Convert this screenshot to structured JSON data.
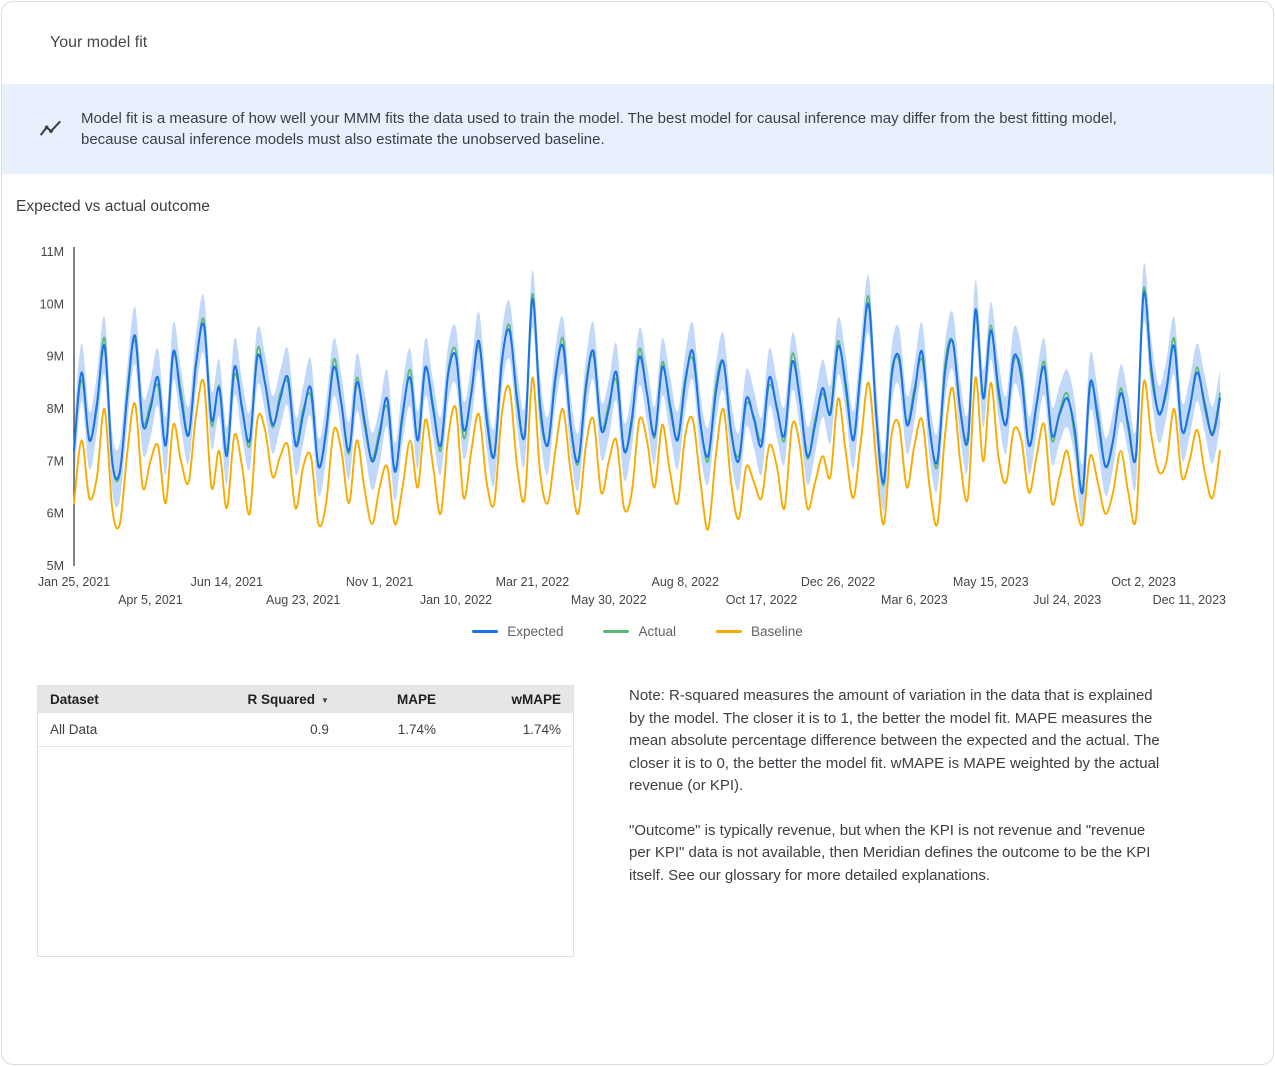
{
  "page": {
    "title": "Your model fit"
  },
  "banner": {
    "icon": "trend-line-icon",
    "text": "Model fit is a measure of how well your MMM fits the data used to train the model. The best model for causal inference may differ from the best fitting model, because causal inference models must also estimate the unobserved baseline."
  },
  "chart_section": {
    "title": "Expected vs actual outcome"
  },
  "chart_data": {
    "type": "line",
    "title": "Expected vs actual outcome",
    "x_unit": "week",
    "x_tick_positions": [
      0,
      10,
      20,
      30,
      40,
      50,
      60,
      70,
      80,
      90,
      100,
      110,
      120,
      130,
      140,
      150
    ],
    "x_tick_labels": [
      "Jan 25, 2021",
      "Apr 5, 2021",
      "Jun 14, 2021",
      "Aug 23, 2021",
      "Nov 1, 2021",
      "Jan 10, 2022",
      "Mar 21, 2022",
      "May 30, 2022",
      "Aug 8, 2022",
      "Oct 17, 2022",
      "Dec 26, 2022",
      "Mar 6, 2023",
      "May 15, 2023",
      "Jul 24, 2023",
      "Oct 2, 2023",
      "Dec 11, 2023"
    ],
    "y_tick_labels": [
      "5M",
      "6M",
      "7M",
      "8M",
      "9M",
      "10M",
      "11M"
    ],
    "ylim_millions": [
      5,
      11
    ],
    "values_unit": "millions",
    "grid": false,
    "legend_position": "bottom",
    "band": {
      "series": "Expected",
      "halfwidth_millions": 0.55,
      "color": "#aecbfa",
      "opacity": 0.75
    },
    "series": [
      {
        "name": "Expected",
        "color": "#1a73e8",
        "values": [
          7.2,
          8.7,
          7.4,
          8.1,
          9.2,
          7.0,
          6.8,
          8.3,
          9.4,
          7.7,
          8.0,
          8.6,
          7.3,
          9.1,
          8.2,
          7.5,
          8.9,
          9.6,
          7.8,
          8.4,
          7.1,
          8.8,
          8.0,
          7.4,
          9.0,
          8.5,
          7.7,
          8.2,
          8.6,
          7.3,
          7.9,
          8.4,
          6.9,
          7.6,
          8.8,
          8.1,
          7.2,
          8.5,
          7.8,
          7.0,
          7.5,
          8.2,
          6.8,
          7.9,
          8.6,
          7.4,
          8.8,
          8.0,
          7.3,
          8.7,
          9.0,
          7.6,
          8.3,
          9.3,
          7.8,
          7.1,
          8.9,
          9.5,
          8.2,
          7.5,
          10.1,
          8.1,
          7.3,
          8.6,
          9.2,
          7.7,
          7.0,
          8.4,
          9.1,
          7.6,
          8.0,
          8.7,
          7.2,
          7.8,
          9.0,
          8.3,
          7.5,
          8.8,
          8.1,
          7.4,
          8.5,
          9.1,
          7.7,
          7.1,
          8.3,
          8.9,
          7.6,
          7.0,
          8.2,
          7.8,
          7.3,
          8.6,
          8.0,
          7.5,
          8.9,
          8.2,
          7.1,
          7.7,
          8.4,
          7.9,
          9.2,
          8.5,
          7.4,
          8.8,
          10.0,
          7.9,
          6.6,
          8.6,
          9.0,
          7.7,
          8.3,
          9.1,
          7.6,
          7.0,
          8.7,
          9.3,
          8.0,
          7.4,
          9.9,
          8.2,
          9.5,
          8.4,
          7.7,
          9.0,
          8.6,
          7.3,
          8.1,
          8.8,
          7.5,
          7.9,
          8.2,
          7.6,
          6.4,
          8.5,
          7.8,
          6.9,
          7.4,
          8.3,
          7.7,
          7.1,
          10.2,
          8.8,
          7.9,
          8.4,
          9.2,
          7.6,
          8.0,
          8.7,
          8.1,
          7.5,
          8.2
        ]
      },
      {
        "name": "Actual",
        "color": "#5bb974",
        "values": [
          7.3,
          8.55,
          7.45,
          8.0,
          9.35,
          7.0,
          6.75,
          8.4,
          9.3,
          7.75,
          8.1,
          8.45,
          7.35,
          9.0,
          8.35,
          7.5,
          8.85,
          9.7,
          7.7,
          8.45,
          7.2,
          8.65,
          8.05,
          7.3,
          9.15,
          8.5,
          7.65,
          8.3,
          8.5,
          7.35,
          8.0,
          8.25,
          6.95,
          7.5,
          8.95,
          8.1,
          7.15,
          8.6,
          7.7,
          7.05,
          7.6,
          8.05,
          6.85,
          7.8,
          8.75,
          7.4,
          8.75,
          8.1,
          7.2,
          8.75,
          9.1,
          7.45,
          8.35,
          9.2,
          7.95,
          7.1,
          8.85,
          9.6,
          8.1,
          7.55,
          10.2,
          7.95,
          7.35,
          8.5,
          9.35,
          7.7,
          6.95,
          8.5,
          9.0,
          7.65,
          8.1,
          8.55,
          7.25,
          7.7,
          9.15,
          8.3,
          7.45,
          8.9,
          8.0,
          7.45,
          8.6,
          8.95,
          7.75,
          7.0,
          8.45,
          8.9,
          7.55,
          7.1,
          8.1,
          7.85,
          7.4,
          8.45,
          8.05,
          7.4,
          9.05,
          8.2,
          7.05,
          7.8,
          8.3,
          7.95,
          9.3,
          8.35,
          7.45,
          8.7,
          10.15,
          7.9,
          6.55,
          8.7,
          8.9,
          7.75,
          8.4,
          8.95,
          7.65,
          6.9,
          8.85,
          9.3,
          7.95,
          7.5,
          9.8,
          8.25,
          9.6,
          8.25,
          7.75,
          8.9,
          8.75,
          7.3,
          8.05,
          8.9,
          7.4,
          7.95,
          8.3,
          7.45,
          6.45,
          8.4,
          7.95,
          6.9,
          7.35,
          8.4,
          7.6,
          7.15,
          10.3,
          8.65,
          7.95,
          8.3,
          9.35,
          7.6,
          7.95,
          8.8,
          8.0,
          7.55,
          8.3
        ]
      },
      {
        "name": "Baseline",
        "color": "#f9ab00",
        "values": [
          6.2,
          7.4,
          6.3,
          6.7,
          8.0,
          6.1,
          5.8,
          7.2,
          8.1,
          6.5,
          7.0,
          7.3,
          6.2,
          7.7,
          7.0,
          6.6,
          7.9,
          8.5,
          6.5,
          7.2,
          6.1,
          7.5,
          6.9,
          6.0,
          7.8,
          7.6,
          6.7,
          7.1,
          7.3,
          6.1,
          6.9,
          7.1,
          5.8,
          6.2,
          7.6,
          7.2,
          6.2,
          7.4,
          6.5,
          5.8,
          6.5,
          6.9,
          5.8,
          6.5,
          7.4,
          6.5,
          7.8,
          6.9,
          6.0,
          7.5,
          8.0,
          6.3,
          7.2,
          7.9,
          6.6,
          6.2,
          7.9,
          8.4,
          6.9,
          6.3,
          8.6,
          6.8,
          6.2,
          7.2,
          8.0,
          6.8,
          6.0,
          7.3,
          7.8,
          6.4,
          7.0,
          7.4,
          6.1,
          6.4,
          7.8,
          7.4,
          6.5,
          7.7,
          6.8,
          6.2,
          7.5,
          7.8,
          6.6,
          5.7,
          7.1,
          8.0,
          6.6,
          5.9,
          6.9,
          6.6,
          6.3,
          7.3,
          6.9,
          6.1,
          7.7,
          7.3,
          6.1,
          6.6,
          7.1,
          6.7,
          8.2,
          7.2,
          6.3,
          7.4,
          8.5,
          7.0,
          5.8,
          7.5,
          7.7,
          6.5,
          7.3,
          7.8,
          6.5,
          5.8,
          7.5,
          8.4,
          7.0,
          6.3,
          8.6,
          7.0,
          8.5,
          7.1,
          6.6,
          7.6,
          7.4,
          6.4,
          7.1,
          7.7,
          6.2,
          6.7,
          7.2,
          6.3,
          5.8,
          7.1,
          6.6,
          6.0,
          6.4,
          7.2,
          6.4,
          5.9,
          8.5,
          7.5,
          6.8,
          7.0,
          8.0,
          6.7,
          7.0,
          7.6,
          6.8,
          6.3,
          7.2
        ]
      }
    ]
  },
  "table": {
    "headers": [
      "Dataset",
      "R Squared",
      "MAPE",
      "wMAPE"
    ],
    "sort_column": "R Squared",
    "sort_icon": "▼",
    "rows": [
      [
        "All Data",
        "0.9",
        "1.74%",
        "1.74%"
      ]
    ]
  },
  "notes": {
    "p1": "Note: R-squared measures the amount of variation in the data that is explained by the model. The closer it is to 1, the better the model fit. MAPE measures the mean absolute percentage difference between the expected and the actual. The closer it is to 0, the better the model fit. wMAPE is MAPE weighted by the actual revenue (or KPI).",
    "p2": "\"Outcome\" is typically revenue, but when the KPI is not revenue and \"revenue per KPI\" data is not available, then Meridian defines the outcome to be the KPI itself. See our glossary for more detailed explanations."
  }
}
